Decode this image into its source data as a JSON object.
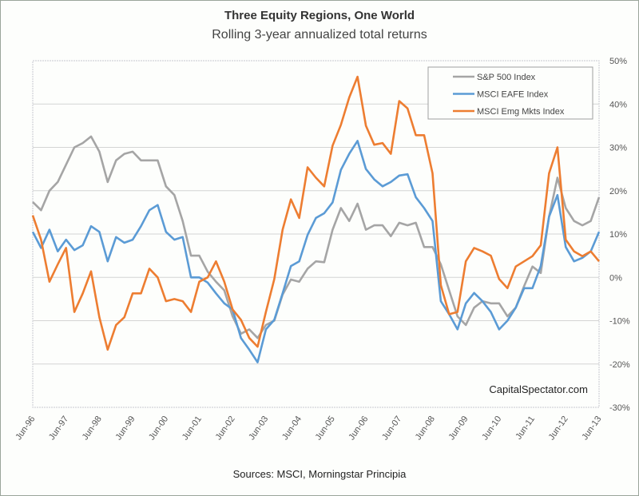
{
  "title": "Three Equity Regions, One World",
  "subtitle": "Rolling 3-year annualized total returns",
  "source": "Sources: MSCI, Morningstar Principia",
  "watermark": "CapitalSpectator.com",
  "chart_data": {
    "type": "line",
    "title": "Three Equity Regions, One World",
    "subtitle": "Rolling 3-year annualized total returns",
    "xlabel": "",
    "ylabel": "",
    "ylim": [
      -30,
      50
    ],
    "y_ticks": [
      "50%",
      "40%",
      "30%",
      "20%",
      "10%",
      "0%",
      "-10%",
      "-20%",
      "-30%"
    ],
    "y_tick_values": [
      50,
      40,
      30,
      20,
      10,
      0,
      -10,
      -20,
      -30
    ],
    "y_axis_side": "right",
    "x_ticks": [
      "Jun-96",
      "Jun-97",
      "Jun-98",
      "Jun-99",
      "Jun-00",
      "Jun-01",
      "Jun-02",
      "Jun-03",
      "Jun-04",
      "Jun-05",
      "Jun-06",
      "Jun-07",
      "Jun-08",
      "Jun-09",
      "Jun-10",
      "Jun-11",
      "Jun-12",
      "Jun-13"
    ],
    "grid": true,
    "legend": "top-right",
    "x": [
      "Jun-96",
      "Sep-96",
      "Dec-96",
      "Mar-97",
      "Jun-97",
      "Sep-97",
      "Dec-97",
      "Mar-98",
      "Jun-98",
      "Sep-98",
      "Dec-98",
      "Mar-99",
      "Jun-99",
      "Sep-99",
      "Dec-99",
      "Mar-00",
      "Jun-00",
      "Sep-00",
      "Dec-00",
      "Mar-01",
      "Jun-01",
      "Sep-01",
      "Dec-01",
      "Mar-02",
      "Jun-02",
      "Sep-02",
      "Dec-02",
      "Mar-03",
      "Jun-03",
      "Sep-03",
      "Dec-03",
      "Mar-04",
      "Jun-04",
      "Sep-04",
      "Dec-04",
      "Mar-05",
      "Jun-05",
      "Sep-05",
      "Dec-05",
      "Mar-06",
      "Jun-06",
      "Sep-06",
      "Dec-06",
      "Mar-07",
      "Jun-07",
      "Sep-07",
      "Dec-07",
      "Mar-08",
      "Jun-08",
      "Sep-08",
      "Dec-08",
      "Mar-09",
      "Jun-09",
      "Sep-09",
      "Dec-09",
      "Mar-10",
      "Jun-10",
      "Sep-10",
      "Dec-10",
      "Mar-11",
      "Jun-11",
      "Sep-11",
      "Dec-11",
      "Mar-12",
      "Jun-12",
      "Sep-12",
      "Dec-12",
      "Mar-13",
      "Jun-13"
    ],
    "series": [
      {
        "name": "S&P 500 Index",
        "color": "#a5a5a5",
        "values": [
          17.4,
          15.5,
          20,
          22,
          26,
          30,
          31,
          32.5,
          29,
          22,
          27,
          28.5,
          29,
          27,
          27,
          27,
          21,
          19,
          13,
          5,
          5,
          1.3,
          -1,
          -3,
          -9,
          -13,
          -12,
          -14,
          -11,
          -10,
          -4,
          -0.5,
          -1,
          2,
          3.7,
          3.5,
          11,
          16,
          13,
          17,
          11,
          12,
          12,
          9.5,
          12.6,
          12,
          12.6,
          7,
          7,
          3,
          -3,
          -9,
          -11,
          -7,
          -5.5,
          -6,
          -6,
          -9,
          -7,
          -2,
          2.5,
          1,
          14,
          23,
          16,
          13,
          12,
          13,
          18.5
        ]
      },
      {
        "name": "MSCI EAFE Index",
        "color": "#5b9bd5",
        "values": [
          10.5,
          6.8,
          11,
          6,
          8.7,
          6.3,
          7.4,
          11.8,
          10.5,
          3.7,
          9.3,
          8,
          8.7,
          11.8,
          15.5,
          16.7,
          10.5,
          8.7,
          9.3,
          0,
          0,
          -1.2,
          -3.7,
          -6,
          -7.4,
          -14,
          -16.7,
          -19.6,
          -12,
          -9.8,
          -3.7,
          2.6,
          3.7,
          9.8,
          13.7,
          14.8,
          17.3,
          24.8,
          28.5,
          31.5,
          25,
          22.6,
          21,
          22,
          23.5,
          23.8,
          18.5,
          16,
          13,
          -5.5,
          -8.5,
          -12,
          -6,
          -3.6,
          -5.5,
          -8,
          -12,
          -10,
          -7,
          -2.5,
          -2.5,
          2.6,
          14,
          19,
          7,
          3.7,
          4.5,
          6,
          10.5
        ]
      },
      {
        "name": "MSCI Emg Mkts Index",
        "color": "#ed7d31",
        "values": [
          14.3,
          8.7,
          -1,
          3,
          6.8,
          -8,
          -3.7,
          1.4,
          -9.2,
          -16.7,
          -11,
          -9.2,
          -3.7,
          -3.7,
          2,
          0,
          -5.5,
          -5,
          -5.5,
          -8,
          -1,
          0,
          3.7,
          -1,
          -7.4,
          -9.8,
          -14,
          -16,
          -8,
          -0.4,
          11,
          18,
          13.7,
          25.4,
          23,
          21,
          30.4,
          35.2,
          41.5,
          46.3,
          35,
          30.6,
          31,
          28.5,
          40.7,
          39,
          32.8,
          32.8,
          24,
          -1.8,
          -8.5,
          -8,
          3.7,
          6.8,
          6,
          5,
          -0.4,
          -2.5,
          2.5,
          3.7,
          4.9,
          7.4,
          24,
          30,
          8.7,
          6,
          4.9,
          6,
          3.7
        ]
      }
    ]
  }
}
